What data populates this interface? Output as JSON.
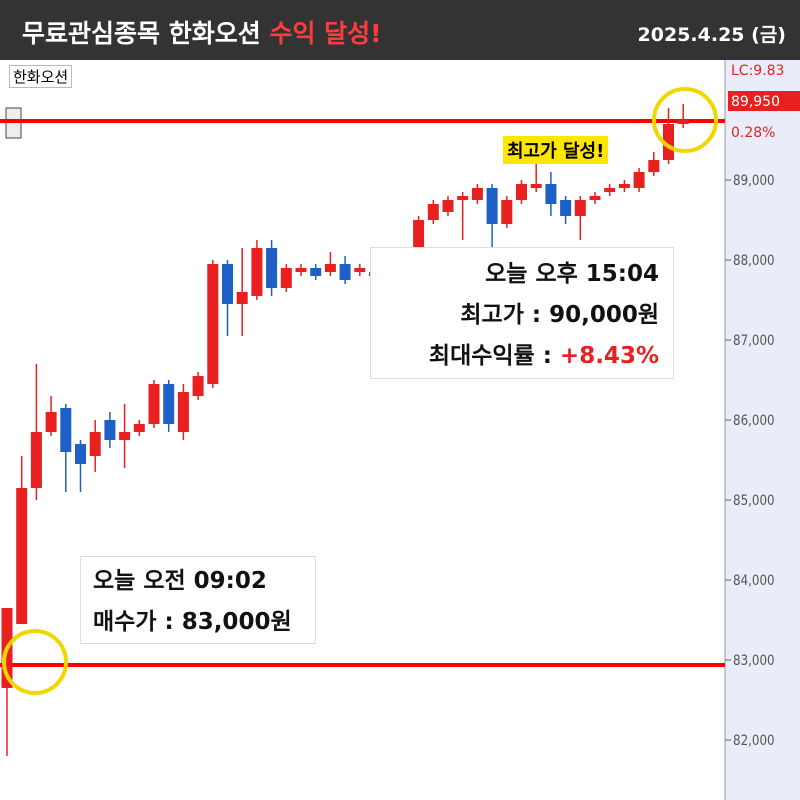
{
  "header": {
    "title": "무료관심종목 한화오션",
    "title_highlight": "수익 달성!",
    "date": "2025.4.25 (금)"
  },
  "chart_data": {
    "type": "candlestick",
    "stock_label": "한화오션",
    "open": [
      82650,
      83450,
      85150,
      85850,
      86150,
      85700,
      85550,
      86000,
      85750,
      85850,
      85950,
      86450,
      85850,
      86300,
      86450,
      87950,
      87450,
      87550,
      88150,
      87650,
      87850,
      87900,
      87850,
      87950,
      87850,
      87850,
      87800,
      87750,
      88050,
      88500,
      88600,
      88750,
      88750,
      88900,
      88450,
      88750,
      88900,
      88950,
      88750,
      88550,
      88750,
      88850,
      88900,
      88900,
      89100,
      89250,
      89700
    ],
    "close": [
      83650,
      85150,
      85850,
      86100,
      85600,
      85450,
      85850,
      85750,
      85850,
      85950,
      86450,
      85950,
      86350,
      86550,
      87950,
      87450,
      87600,
      88150,
      87650,
      87900,
      87900,
      87800,
      87950,
      87750,
      87900,
      87800,
      87750,
      87850,
      88500,
      88700,
      88750,
      88800,
      88900,
      88450,
      88750,
      88950,
      88950,
      88700,
      88550,
      88750,
      88800,
      88900,
      88950,
      89100,
      89250,
      89700,
      89750
    ],
    "high": [
      83650,
      85550,
      86700,
      86300,
      86200,
      85750,
      86000,
      86100,
      86200,
      86000,
      86500,
      86500,
      86450,
      86600,
      88000,
      88000,
      88150,
      88250,
      88250,
      87950,
      87950,
      87950,
      88100,
      88050,
      87950,
      87900,
      87850,
      87900,
      88550,
      88750,
      88800,
      88850,
      88950,
      88950,
      88800,
      89000,
      89300,
      89100,
      88800,
      88800,
      88850,
      88950,
      89000,
      89150,
      89350,
      89900,
      89950
    ],
    "low": [
      81800,
      83450,
      85000,
      85800,
      85100,
      85100,
      85350,
      85650,
      85400,
      85800,
      85900,
      85850,
      85750,
      86250,
      86400,
      87050,
      87050,
      87500,
      87550,
      87600,
      87800,
      87750,
      87800,
      87700,
      87800,
      87750,
      87700,
      87700,
      88000,
      88450,
      88550,
      88250,
      88700,
      88000,
      88400,
      88700,
      88850,
      88550,
      88450,
      88250,
      88700,
      88800,
      88850,
      88850,
      89050,
      89200,
      89650
    ],
    "up_color": "#e8201f",
    "down_color": "#1e5fc8",
    "ylim": [
      81250,
      90500
    ],
    "yticks": [
      {
        "value": 82000,
        "label": "82,000"
      },
      {
        "value": 83000,
        "label": "83,000"
      },
      {
        "value": 84000,
        "label": "84,000"
      },
      {
        "value": 85000,
        "label": "85,000"
      },
      {
        "value": 86000,
        "label": "86,000"
      },
      {
        "value": 87000,
        "label": "87,000"
      },
      {
        "value": 88000,
        "label": "88,000"
      },
      {
        "value": 89000,
        "label": "89,000"
      }
    ],
    "axis_labels": {
      "lc": "LC:9.83",
      "last_price": "89,950",
      "change": "0.28%"
    },
    "annotations": {
      "peak_badge": "최고가 달성!",
      "sell_box": {
        "time": "오늘 오후 15:04",
        "high_price": "최고가 : 90,000원",
        "return_label": "최대수익률 : ",
        "return_value": "+8.43%"
      },
      "buy_box": {
        "time": "오늘 오전 09:02",
        "buy_price": "매수가 : 83,000원"
      }
    }
  }
}
